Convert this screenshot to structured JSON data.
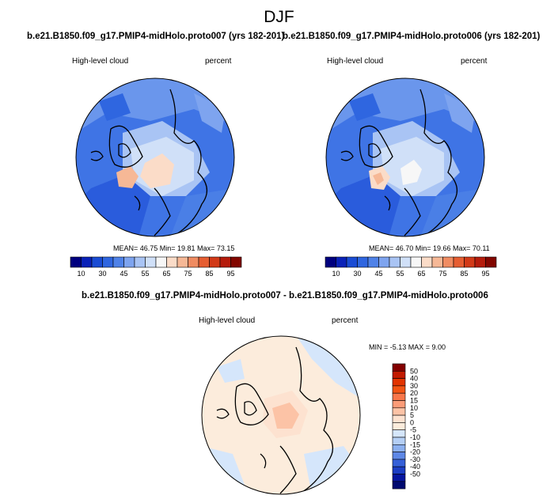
{
  "page": {
    "season_title": "DJF",
    "diff_title": "b.e21.B1850.f09_g17.PMIP4-midHolo.proto007 - b.e21.B1850.f09_g17.PMIP4-midHolo.proto006"
  },
  "panels": [
    {
      "run_title": "b.e21.B1850.f09_g17.PMIP4-midHolo.proto007 (yrs 182-201)",
      "left_label": "High-level cloud",
      "right_label": "percent",
      "stats": "MEAN= 46.75  Min= 19.81  Max= 73.15",
      "colorbar_ticks": [
        "10",
        "30",
        "45",
        "55",
        "65",
        "75",
        "85",
        "95"
      ]
    },
    {
      "run_title": "b.e21.B1850.f09_g17.PMIP4-midHolo.proto006 (yrs 182-201)",
      "left_label": "High-level cloud",
      "right_label": "percent",
      "stats": "MEAN= 46.70  Min= 19.66  Max= 70.11",
      "colorbar_ticks": [
        "10",
        "30",
        "45",
        "55",
        "65",
        "75",
        "85",
        "95"
      ]
    },
    {
      "left_label": "High-level cloud",
      "right_label": "percent",
      "stats": "MIN = -5.13 MAX =   9.00",
      "colorbar_ticks": [
        "50",
        "40",
        "30",
        "20",
        "15",
        "10",
        "5",
        "0",
        "-5",
        "-10",
        "-15",
        "-20",
        "-30",
        "-40",
        "-50"
      ]
    }
  ],
  "chart_data": [
    {
      "type": "heatmap",
      "projection": "north polar stereographic",
      "title": "b.e21.B1850.f09_g17.PMIP4-midHolo.proto007 (yrs 182-201)",
      "variable": "High-level cloud",
      "units": "percent",
      "mean": 46.75,
      "min": 19.81,
      "max": 73.15,
      "colorbar_levels": [
        10,
        30,
        45,
        55,
        65,
        75,
        85,
        95
      ],
      "colors": [
        "#00007f",
        "#0a22b8",
        "#1a4cd4",
        "#2f66e0",
        "#4f82e8",
        "#7ea4ef",
        "#a9c4f4",
        "#d0e0f8",
        "#f7f7f7",
        "#fbdcc8",
        "#f6b896",
        "#f08c62",
        "#e65e32",
        "#d23a18",
        "#b51c0c",
        "#820600"
      ]
    },
    {
      "type": "heatmap",
      "projection": "north polar stereographic",
      "title": "b.e21.B1850.f09_g17.PMIP4-midHolo.proto006 (yrs 182-201)",
      "variable": "High-level cloud",
      "units": "percent",
      "mean": 46.7,
      "min": 19.66,
      "max": 70.11,
      "colorbar_levels": [
        10,
        30,
        45,
        55,
        65,
        75,
        85,
        95
      ]
    },
    {
      "type": "heatmap",
      "projection": "north polar stereographic",
      "title": "b.e21.B1850.f09_g17.PMIP4-midHolo.proto007 - b.e21.B1850.f09_g17.PMIP4-midHolo.proto006",
      "variable": "High-level cloud",
      "units": "percent",
      "min": -5.13,
      "max": 9.0,
      "colorbar_levels": [
        50,
        40,
        30,
        20,
        15,
        10,
        5,
        0,
        -5,
        -10,
        -15,
        -20,
        -30,
        -40,
        -50
      ],
      "colors": [
        "#840000",
        "#c21a00",
        "#e23400",
        "#f25414",
        "#f8774a",
        "#fb9c78",
        "#fcc3a6",
        "#fde2d0",
        "#fcecdc",
        "#d5e6fb",
        "#b5cff5",
        "#8cb0ef",
        "#5e88e6",
        "#3560d8",
        "#1c3ec4",
        "#0616a0",
        "#000a70"
      ]
    }
  ]
}
